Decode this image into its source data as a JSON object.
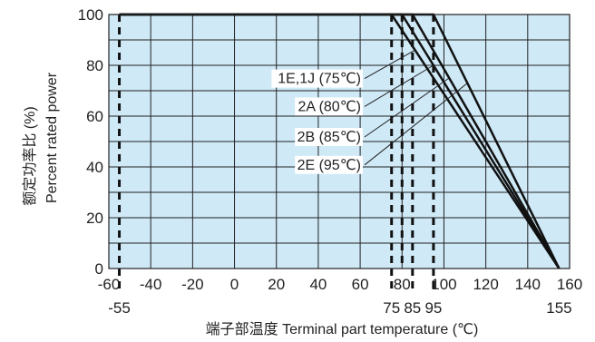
{
  "chart_data": {
    "type": "line",
    "title": "",
    "xlabel": "端子部温度 Terminal part temperature (℃)",
    "ylabel_cn": "额定功率比 (%)",
    "ylabel_en": "Percent rated power",
    "xlim": [
      -60,
      160
    ],
    "ylim": [
      0,
      100
    ],
    "grid": true,
    "plot_background": "#cfe9f7",
    "line_color": "#111111",
    "x_ticks": [
      "-60",
      "-40",
      "-20",
      "0",
      "20",
      "40",
      "60",
      "80",
      "100",
      "120",
      "140",
      "160"
    ],
    "x_ticks_values": [
      -60,
      -40,
      -20,
      0,
      20,
      40,
      60,
      80,
      100,
      120,
      140,
      160
    ],
    "x_ticks_secondary": [
      "-55",
      "75",
      "85",
      "95",
      "155"
    ],
    "x_ticks_secondary_values": [
      -55,
      75,
      85,
      95,
      155
    ],
    "y_ticks": [
      "0",
      "20",
      "40",
      "60",
      "80",
      "100"
    ],
    "y_ticks_values": [
      0,
      20,
      40,
      60,
      80,
      100
    ],
    "dashed_x_values": [
      -55,
      75,
      80,
      85,
      95
    ],
    "series": [
      {
        "name": "1E,1J (75℃)",
        "points": [
          [
            -55,
            100
          ],
          [
            75,
            100
          ],
          [
            155,
            0
          ]
        ]
      },
      {
        "name": "2A (80℃)",
        "points": [
          [
            -55,
            100
          ],
          [
            80,
            100
          ],
          [
            155,
            0
          ]
        ]
      },
      {
        "name": "2B (85℃)",
        "points": [
          [
            -55,
            100
          ],
          [
            85,
            100
          ],
          [
            155,
            0
          ]
        ]
      },
      {
        "name": "2E (95℃)",
        "points": [
          [
            -55,
            100
          ],
          [
            95,
            100
          ],
          [
            155,
            0
          ]
        ]
      }
    ]
  }
}
